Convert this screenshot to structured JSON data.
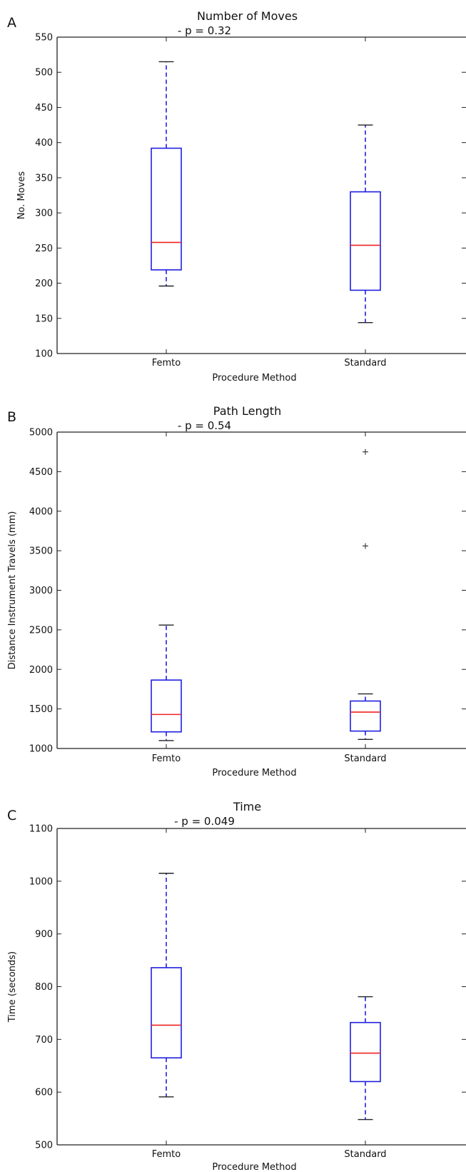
{
  "chart_data": [
    {
      "type": "box",
      "panel_label": "A",
      "title": "Number of Moves",
      "subtitle": "- p = 0.32",
      "xlabel": "Procedure Method",
      "ylabel": "No. Moves",
      "ylim": [
        100,
        550
      ],
      "yticks": [
        "100",
        "150",
        "200",
        "250",
        "300",
        "350",
        "400",
        "450",
        "500",
        "550"
      ],
      "categories": [
        "Femto",
        "Standard"
      ],
      "boxes": [
        {
          "category": "Femto",
          "whisker_low": 196,
          "q1": 219,
          "median": 258,
          "q3": 392,
          "whisker_high": 515,
          "outliers": []
        },
        {
          "category": "Standard",
          "whisker_low": 144,
          "q1": 190,
          "median": 254,
          "q3": 330,
          "whisker_high": 425,
          "outliers": []
        }
      ]
    },
    {
      "type": "box",
      "panel_label": "B",
      "title": "Path Length",
      "subtitle": "- p = 0.54",
      "xlabel": "Procedure Method",
      "ylabel": "Distance Instrument Travels (mm)",
      "ylim": [
        1000,
        5000
      ],
      "yticks": [
        "1000",
        "1500",
        "2000",
        "2500",
        "3000",
        "3500",
        "4000",
        "4500",
        "5000"
      ],
      "categories": [
        "Femto",
        "Standard"
      ],
      "boxes": [
        {
          "category": "Femto",
          "whisker_low": 1100,
          "q1": 1210,
          "median": 1430,
          "q3": 1865,
          "whisker_high": 2560,
          "outliers": []
        },
        {
          "category": "Standard",
          "whisker_low": 1115,
          "q1": 1220,
          "median": 1460,
          "q3": 1600,
          "whisker_high": 1690,
          "outliers": [
            3560,
            4750
          ]
        }
      ]
    },
    {
      "type": "box",
      "panel_label": "C",
      "title": "Time",
      "subtitle": "- p = 0.049",
      "xlabel": "Procedure Method",
      "ylabel": "Time (seconds)",
      "ylim": [
        500,
        1100
      ],
      "yticks": [
        "500",
        "600",
        "700",
        "800",
        "900",
        "1000",
        "1100"
      ],
      "categories": [
        "Femto",
        "Standard"
      ],
      "boxes": [
        {
          "category": "Femto",
          "whisker_low": 591,
          "q1": 665,
          "median": 727,
          "q3": 836,
          "whisker_high": 1015,
          "outliers": []
        },
        {
          "category": "Standard",
          "whisker_low": 548,
          "q1": 620,
          "median": 674,
          "q3": 732,
          "whisker_high": 781,
          "outliers": []
        }
      ]
    }
  ],
  "style": {
    "box_color": "#1f1fe0",
    "median_color": "#ee2222",
    "whisker_color": "#1f1fe0",
    "cap_color": "#222222",
    "axis_color": "#222222"
  }
}
